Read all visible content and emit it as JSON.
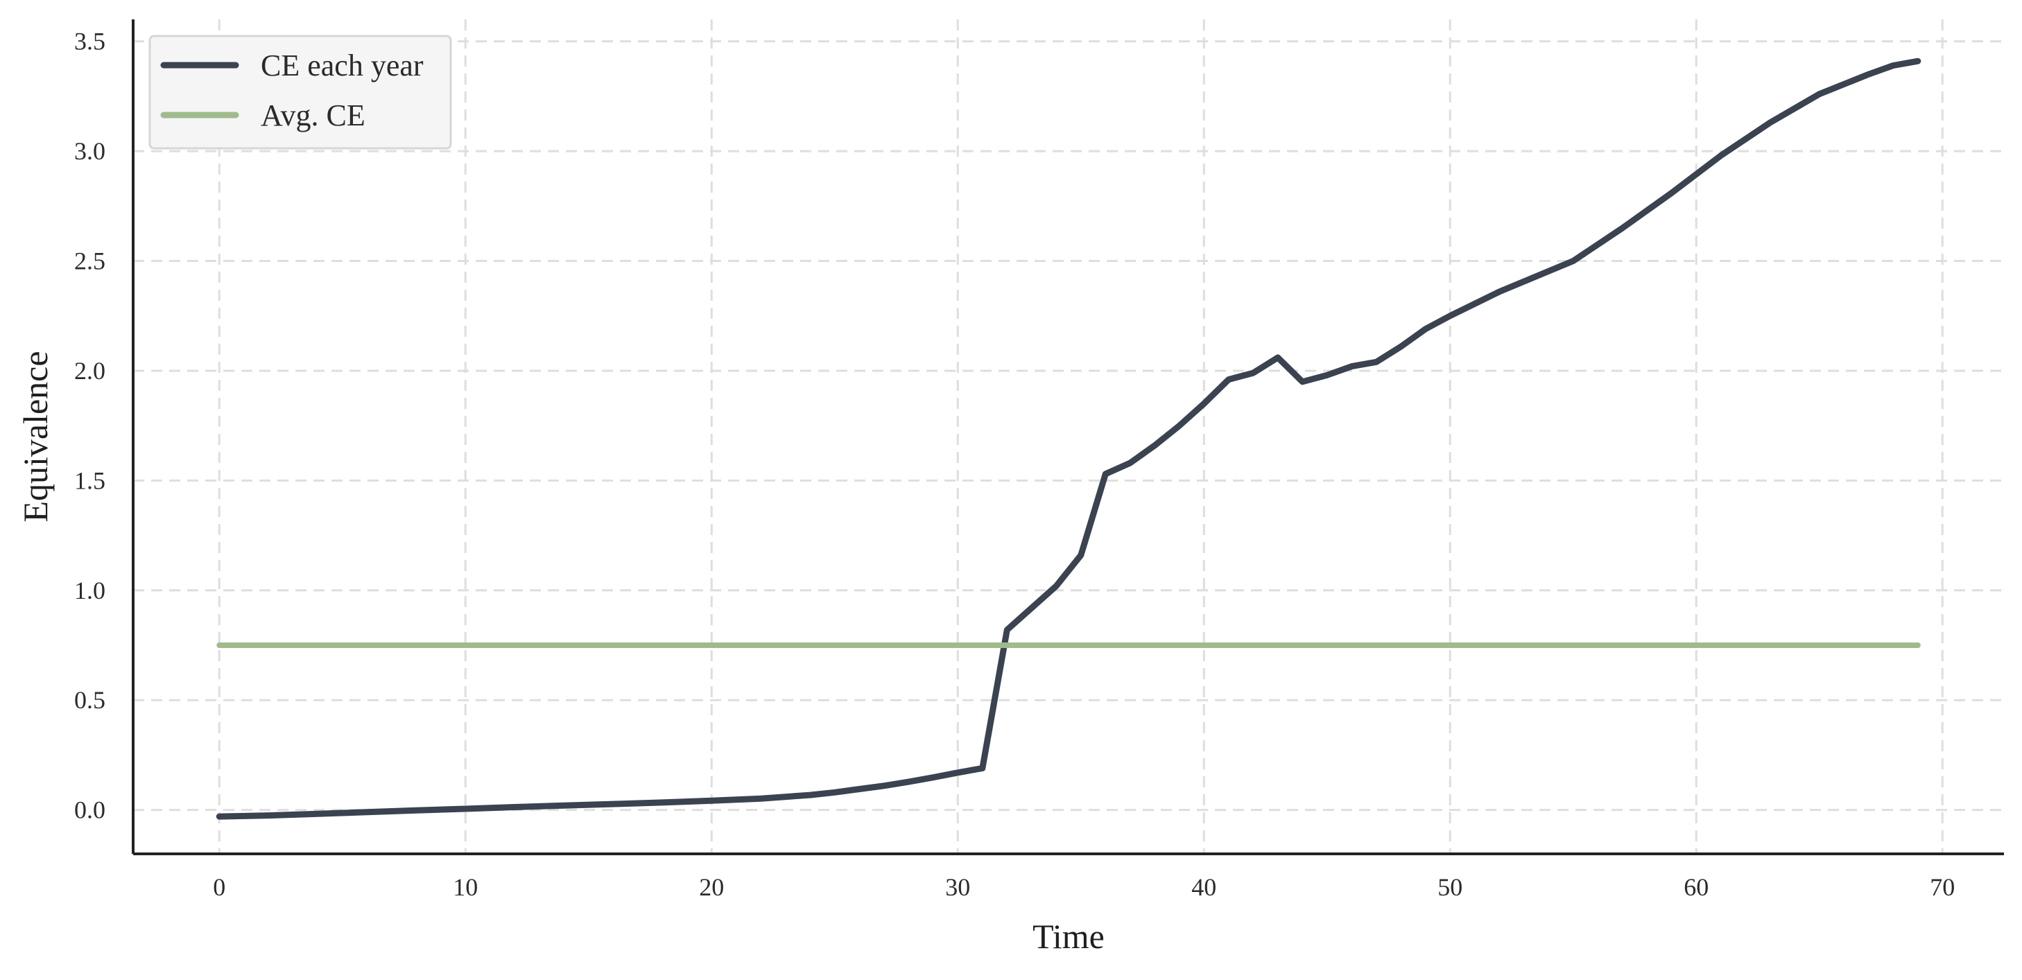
{
  "colors": {
    "series_ce": "#3b4250",
    "series_avg": "#9fbb8c",
    "axis": "#222222",
    "grid": "#dedede",
    "legend_bg": "#f5f5f5",
    "legend_border": "#d6d6d6"
  },
  "chart_data": {
    "type": "line",
    "title": "",
    "xlabel": "Time",
    "ylabel": "Equivalence",
    "xlim": [
      -3.5,
      72.5
    ],
    "ylim": [
      -0.2,
      3.6
    ],
    "xticks": [
      0,
      10,
      20,
      30,
      40,
      50,
      60,
      70
    ],
    "yticks": [
      0.0,
      0.5,
      1.0,
      1.5,
      2.0,
      2.5,
      3.0,
      3.5
    ],
    "xtick_labels": [
      "0",
      "10",
      "20",
      "30",
      "40",
      "50",
      "60",
      "70"
    ],
    "ytick_labels": [
      "0.0",
      "0.5",
      "1.0",
      "1.5",
      "2.0",
      "2.5",
      "3.0",
      "3.5"
    ],
    "grid": true,
    "legend_position": "top-left",
    "series": [
      {
        "name": "CE each year",
        "color": "#3b4250",
        "x": [
          0,
          2,
          4,
          6,
          8,
          10,
          12,
          14,
          16,
          18,
          20,
          22,
          24,
          25,
          26,
          27,
          28,
          29,
          30,
          31,
          32,
          33,
          34,
          35,
          36,
          37,
          38,
          39,
          40,
          41,
          42,
          43,
          44,
          45,
          46,
          47,
          48,
          49,
          50,
          52,
          55,
          57,
          59,
          61,
          63,
          65,
          67,
          68,
          69
        ],
        "values": [
          -0.03,
          -0.025,
          -0.018,
          -0.01,
          -0.002,
          0.005,
          0.013,
          0.02,
          0.027,
          0.034,
          0.042,
          0.052,
          0.068,
          0.08,
          0.095,
          0.11,
          0.128,
          0.148,
          0.17,
          0.19,
          0.82,
          0.92,
          1.02,
          1.16,
          1.53,
          1.58,
          1.66,
          1.75,
          1.85,
          1.96,
          1.99,
          2.06,
          1.95,
          1.98,
          2.02,
          2.04,
          2.11,
          2.19,
          2.25,
          2.36,
          2.5,
          2.65,
          2.81,
          2.98,
          3.13,
          3.26,
          3.35,
          3.39,
          3.41
        ]
      },
      {
        "name": "Avg. CE",
        "color": "#9fbb8c",
        "x": [
          0,
          69
        ],
        "values": [
          0.75,
          0.75
        ]
      }
    ]
  }
}
